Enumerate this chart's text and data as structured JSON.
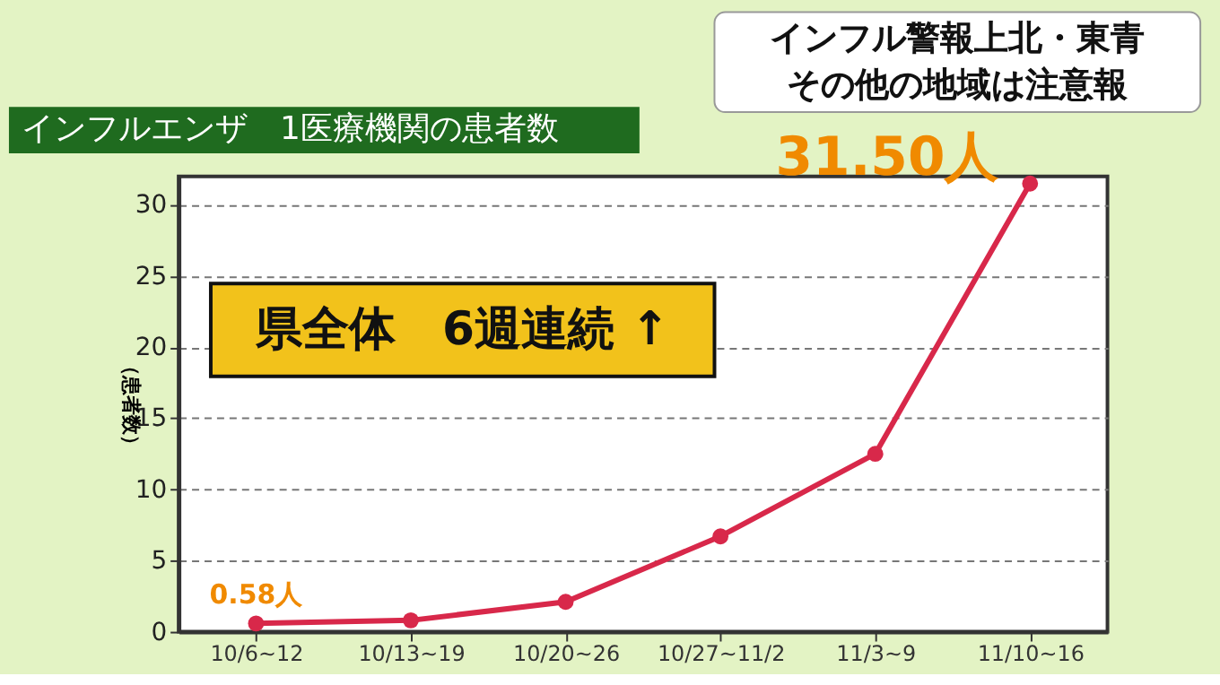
{
  "chart_data": {
    "type": "line",
    "title": "インフルエンザ　1医療機関の患者数",
    "ylabel": "（患者数）",
    "categories": [
      "10/6~12",
      "10/13~19",
      "10/20~26",
      "10/27~11/2",
      "11/3~9",
      "11/10~16"
    ],
    "series": [
      {
        "color": "#d8284a",
        "values": [
          0.58,
          0.8,
          2.1,
          6.7,
          12.5,
          31.5
        ]
      }
    ],
    "ylim": [
      0,
      32
    ],
    "yticks": [
      0,
      5,
      10,
      15,
      20,
      25,
      30
    ],
    "grid": "y",
    "marker": "circle",
    "line_style": "solid",
    "annotations": [
      {
        "text": "0.58人",
        "x": "10/6~12",
        "y": 0.58
      },
      {
        "text": "31.50人",
        "x": "11/10~16",
        "y": 31.5
      },
      "県全体　6週連続 ↑",
      "インフル警報上北・東青",
      "その他の地域は注意報"
    ]
  }
}
